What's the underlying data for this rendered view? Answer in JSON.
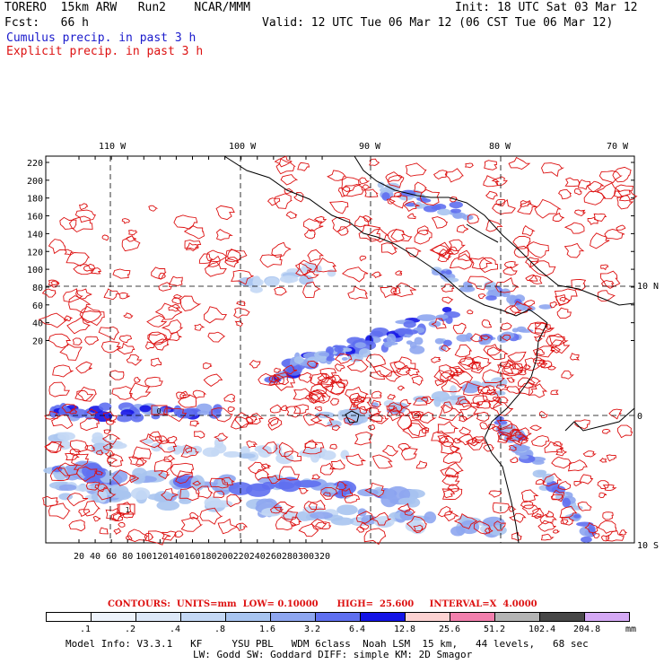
{
  "header": {
    "model": "TORERO  15km ARW   Run2    NCAR/MMM",
    "init": "Init: 18 UTC Sat 03 Mar 12",
    "fcst": "Fcst:   66 h",
    "valid": "Valid: 12 UTC Tue 06 Mar 12 (06 CST Tue 06 Mar 12)",
    "cumulus": "Cumulus precip. in past 3 h",
    "explicit": "Explicit precip. in past 3 h"
  },
  "map": {
    "top_lon_labels": [
      "110 W",
      "100 W",
      "90 W",
      "80 W",
      "70 W"
    ],
    "right_lat_labels": [
      "10 N",
      "0",
      "10 S"
    ],
    "y_ticks": [
      "220",
      "200",
      "180",
      "160",
      "140",
      "120",
      "100",
      "80",
      "60",
      "40",
      "20"
    ],
    "x_ticks": [
      "20",
      "40",
      "60",
      "80",
      "100",
      "120",
      "140",
      "160",
      "180",
      "200",
      "220",
      "240",
      "260",
      "280",
      "300",
      "320"
    ],
    "box_labels": [
      "0",
      "1"
    ]
  },
  "contours_line": "CONTOURS:  UNITS=mm  LOW= 0.10000      HIGH=  25.600     INTERVAL=X  4.0000",
  "legend": {
    "values": [
      ".1",
      ".2",
      ".4",
      ".8",
      "1.6",
      "3.2",
      "6.4",
      "12.8",
      "25.6",
      "51.2",
      "102.4",
      "204.8"
    ],
    "unit": "mm",
    "colors": [
      "#ffffff",
      "#eef3fb",
      "#dde8f8",
      "#c4d8f5",
      "#a8c4f0",
      "#8ea6f0",
      "#5f6ff0",
      "#1414e6",
      "#fcd2d2",
      "#f27fad",
      "#b4b4b4",
      "#484848",
      "#d5a9f5"
    ]
  },
  "info": {
    "line1": "Model Info: V3.3.1   KF     YSU PBL   WDM 6class  Noah LSM  15 km,   44 levels,   68 sec",
    "line2": "LW: Godd SW: Goddard DIFF: simple KM: 2D Smagor"
  },
  "colors": {
    "contour": "#dd1111",
    "coast": "#000000",
    "precip_light": "#c4d8f5",
    "precip_mid": "#5f6ff0",
    "precip_heavy": "#1414e6"
  }
}
